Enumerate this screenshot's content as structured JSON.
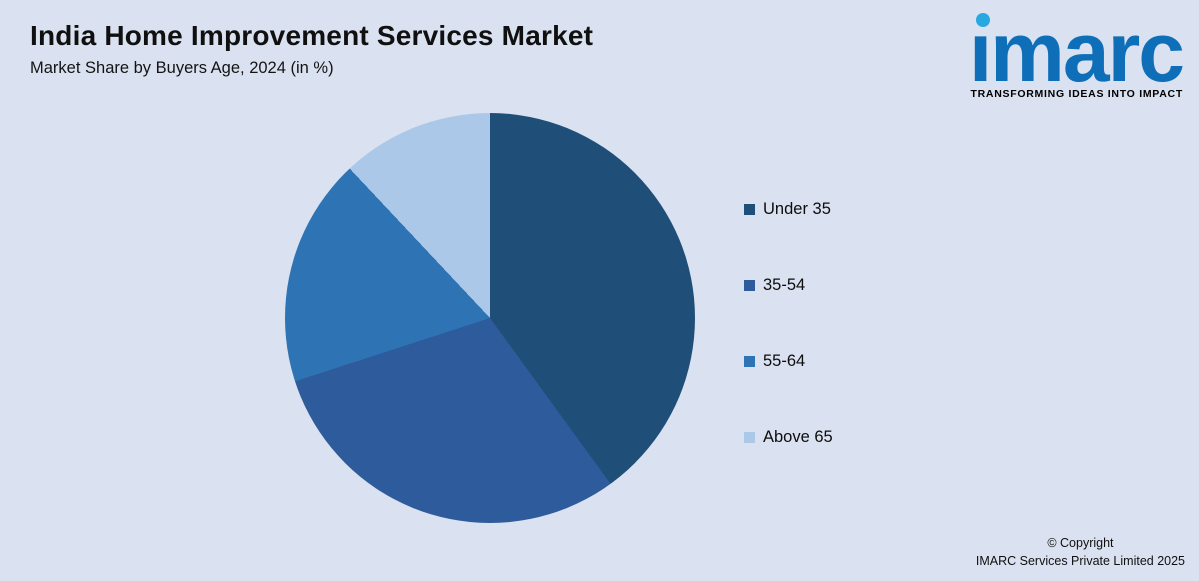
{
  "header": {
    "title": "India Home Improvement Services Market",
    "subtitle": "Market Share by Buyers Age, 2024 (in %)"
  },
  "logo": {
    "text": "imarc",
    "tagline": "TRANSFORMING IDEAS INTO IMPACT",
    "brand_color": "#0e6fb8",
    "dot_color": "#29a8e0"
  },
  "chart_data": {
    "type": "pie",
    "title": "India Home Improvement Services Market",
    "subtitle": "Market Share by Buyers Age, 2024 (in %)",
    "categories": [
      "Under 35",
      "35-54",
      "55-64",
      "Above 65"
    ],
    "values": [
      40,
      30,
      18,
      12
    ],
    "unit": "%",
    "colors": [
      "#1f4e79",
      "#2e5b9c",
      "#2e74b5",
      "#abc8e8"
    ],
    "start_angle_deg": 0,
    "direction": "clockwise",
    "legend_position": "right",
    "data_labels": false
  },
  "footer": {
    "copyright_line1": "© Copyright",
    "copyright_line2": "IMARC Services Private Limited 2025"
  },
  "colors": {
    "background": "#dae1f0",
    "text": "#101010"
  }
}
